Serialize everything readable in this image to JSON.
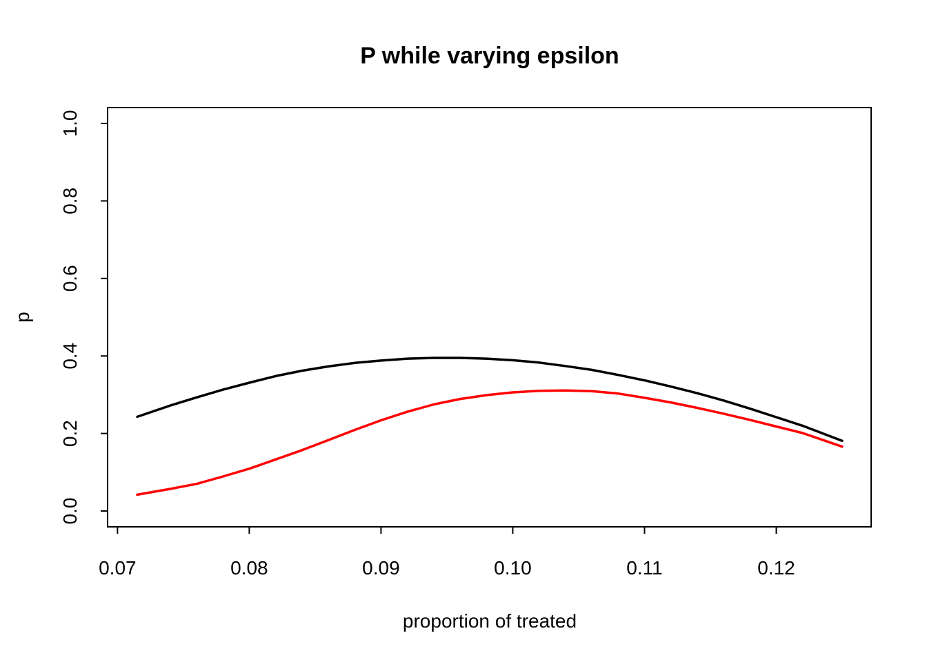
{
  "chart_data": {
    "type": "line",
    "title": "P while varying epsilon",
    "xlabel": "proportion of treated",
    "ylabel": "p",
    "xlim": [
      0.07,
      0.127
    ],
    "ylim": [
      0.0,
      1.0
    ],
    "xticks": [
      0.07,
      0.08,
      0.09,
      0.1,
      0.11,
      0.12
    ],
    "xtick_labels": [
      "0.07",
      "0.08",
      "0.09",
      "0.10",
      "0.11",
      "0.12"
    ],
    "yticks": [
      0.0,
      0.2,
      0.4,
      0.6,
      0.8,
      1.0
    ],
    "ytick_labels": [
      "0.0",
      "0.2",
      "0.4",
      "0.6",
      "0.8",
      "1.0"
    ],
    "grid": false,
    "series": [
      {
        "color": "#000000",
        "x": [
          0.0715,
          0.074,
          0.076,
          0.078,
          0.08,
          0.082,
          0.084,
          0.086,
          0.088,
          0.09,
          0.092,
          0.094,
          0.096,
          0.098,
          0.1,
          0.102,
          0.104,
          0.106,
          0.108,
          0.11,
          0.112,
          0.114,
          0.116,
          0.118,
          0.12,
          0.122,
          0.125
        ],
        "y": [
          0.243,
          0.272,
          0.293,
          0.313,
          0.331,
          0.348,
          0.362,
          0.373,
          0.382,
          0.388,
          0.393,
          0.395,
          0.395,
          0.393,
          0.389,
          0.383,
          0.374,
          0.364,
          0.351,
          0.337,
          0.321,
          0.304,
          0.285,
          0.264,
          0.242,
          0.22,
          0.181
        ]
      },
      {
        "color": "#ff0000",
        "x": [
          0.0715,
          0.074,
          0.076,
          0.078,
          0.08,
          0.082,
          0.084,
          0.086,
          0.088,
          0.09,
          0.092,
          0.094,
          0.096,
          0.098,
          0.1,
          0.102,
          0.104,
          0.106,
          0.108,
          0.11,
          0.112,
          0.114,
          0.116,
          0.118,
          0.12,
          0.122,
          0.125
        ],
        "y": [
          0.042,
          0.057,
          0.07,
          0.089,
          0.109,
          0.133,
          0.157,
          0.183,
          0.209,
          0.234,
          0.256,
          0.275,
          0.289,
          0.299,
          0.306,
          0.31,
          0.311,
          0.309,
          0.303,
          0.292,
          0.28,
          0.266,
          0.251,
          0.235,
          0.218,
          0.201,
          0.166
        ]
      }
    ]
  }
}
